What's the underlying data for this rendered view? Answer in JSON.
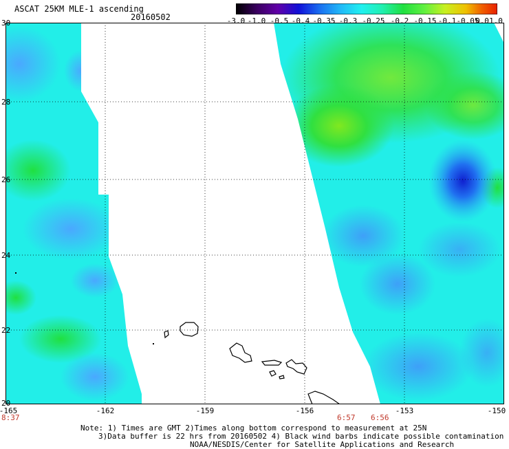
{
  "header": {
    "title": "ASCAT 25KM MLE-1 ascending",
    "date": "20160502"
  },
  "colorbar": {
    "labels": [
      "-3.0",
      "-1.0",
      "-0.5",
      "-0.4",
      "-0.35",
      "-0.3",
      "-0.25",
      "-0.2",
      "-0.15",
      "-0.1",
      "-0.05",
      "0.0",
      "1.0"
    ],
    "colors": [
      "#000000",
      "#5a0088",
      "#1010d8",
      "#1a6ef0",
      "#20b8f8",
      "#20f0f0",
      "#20f0c0",
      "#20e040",
      "#60f040",
      "#c8f020",
      "#f0c000",
      "#f06000",
      "#e82000"
    ]
  },
  "map": {
    "lat_labels": [
      "30",
      "28",
      "26",
      "24",
      "22",
      "20"
    ],
    "lon_labels": [
      "-165",
      "-162",
      "-159",
      "-156",
      "-153",
      "-150"
    ],
    "time_labels": [
      "8:37",
      "6:57",
      "6:56"
    ],
    "land_color": "#000000",
    "ocean_color": "#20f0f0",
    "nodata_color": "#ffffff"
  },
  "notes": {
    "line1": "Note: 1) Times are GMT 2)Times along bottom correspond to measurement at 25N",
    "line2": "3)Data buffer is 22 hrs from 20160502 4) Black wind barbs indicate possible contamination",
    "line3": "NOAA/NESDIS/Center for Satellite Applications and Research"
  }
}
